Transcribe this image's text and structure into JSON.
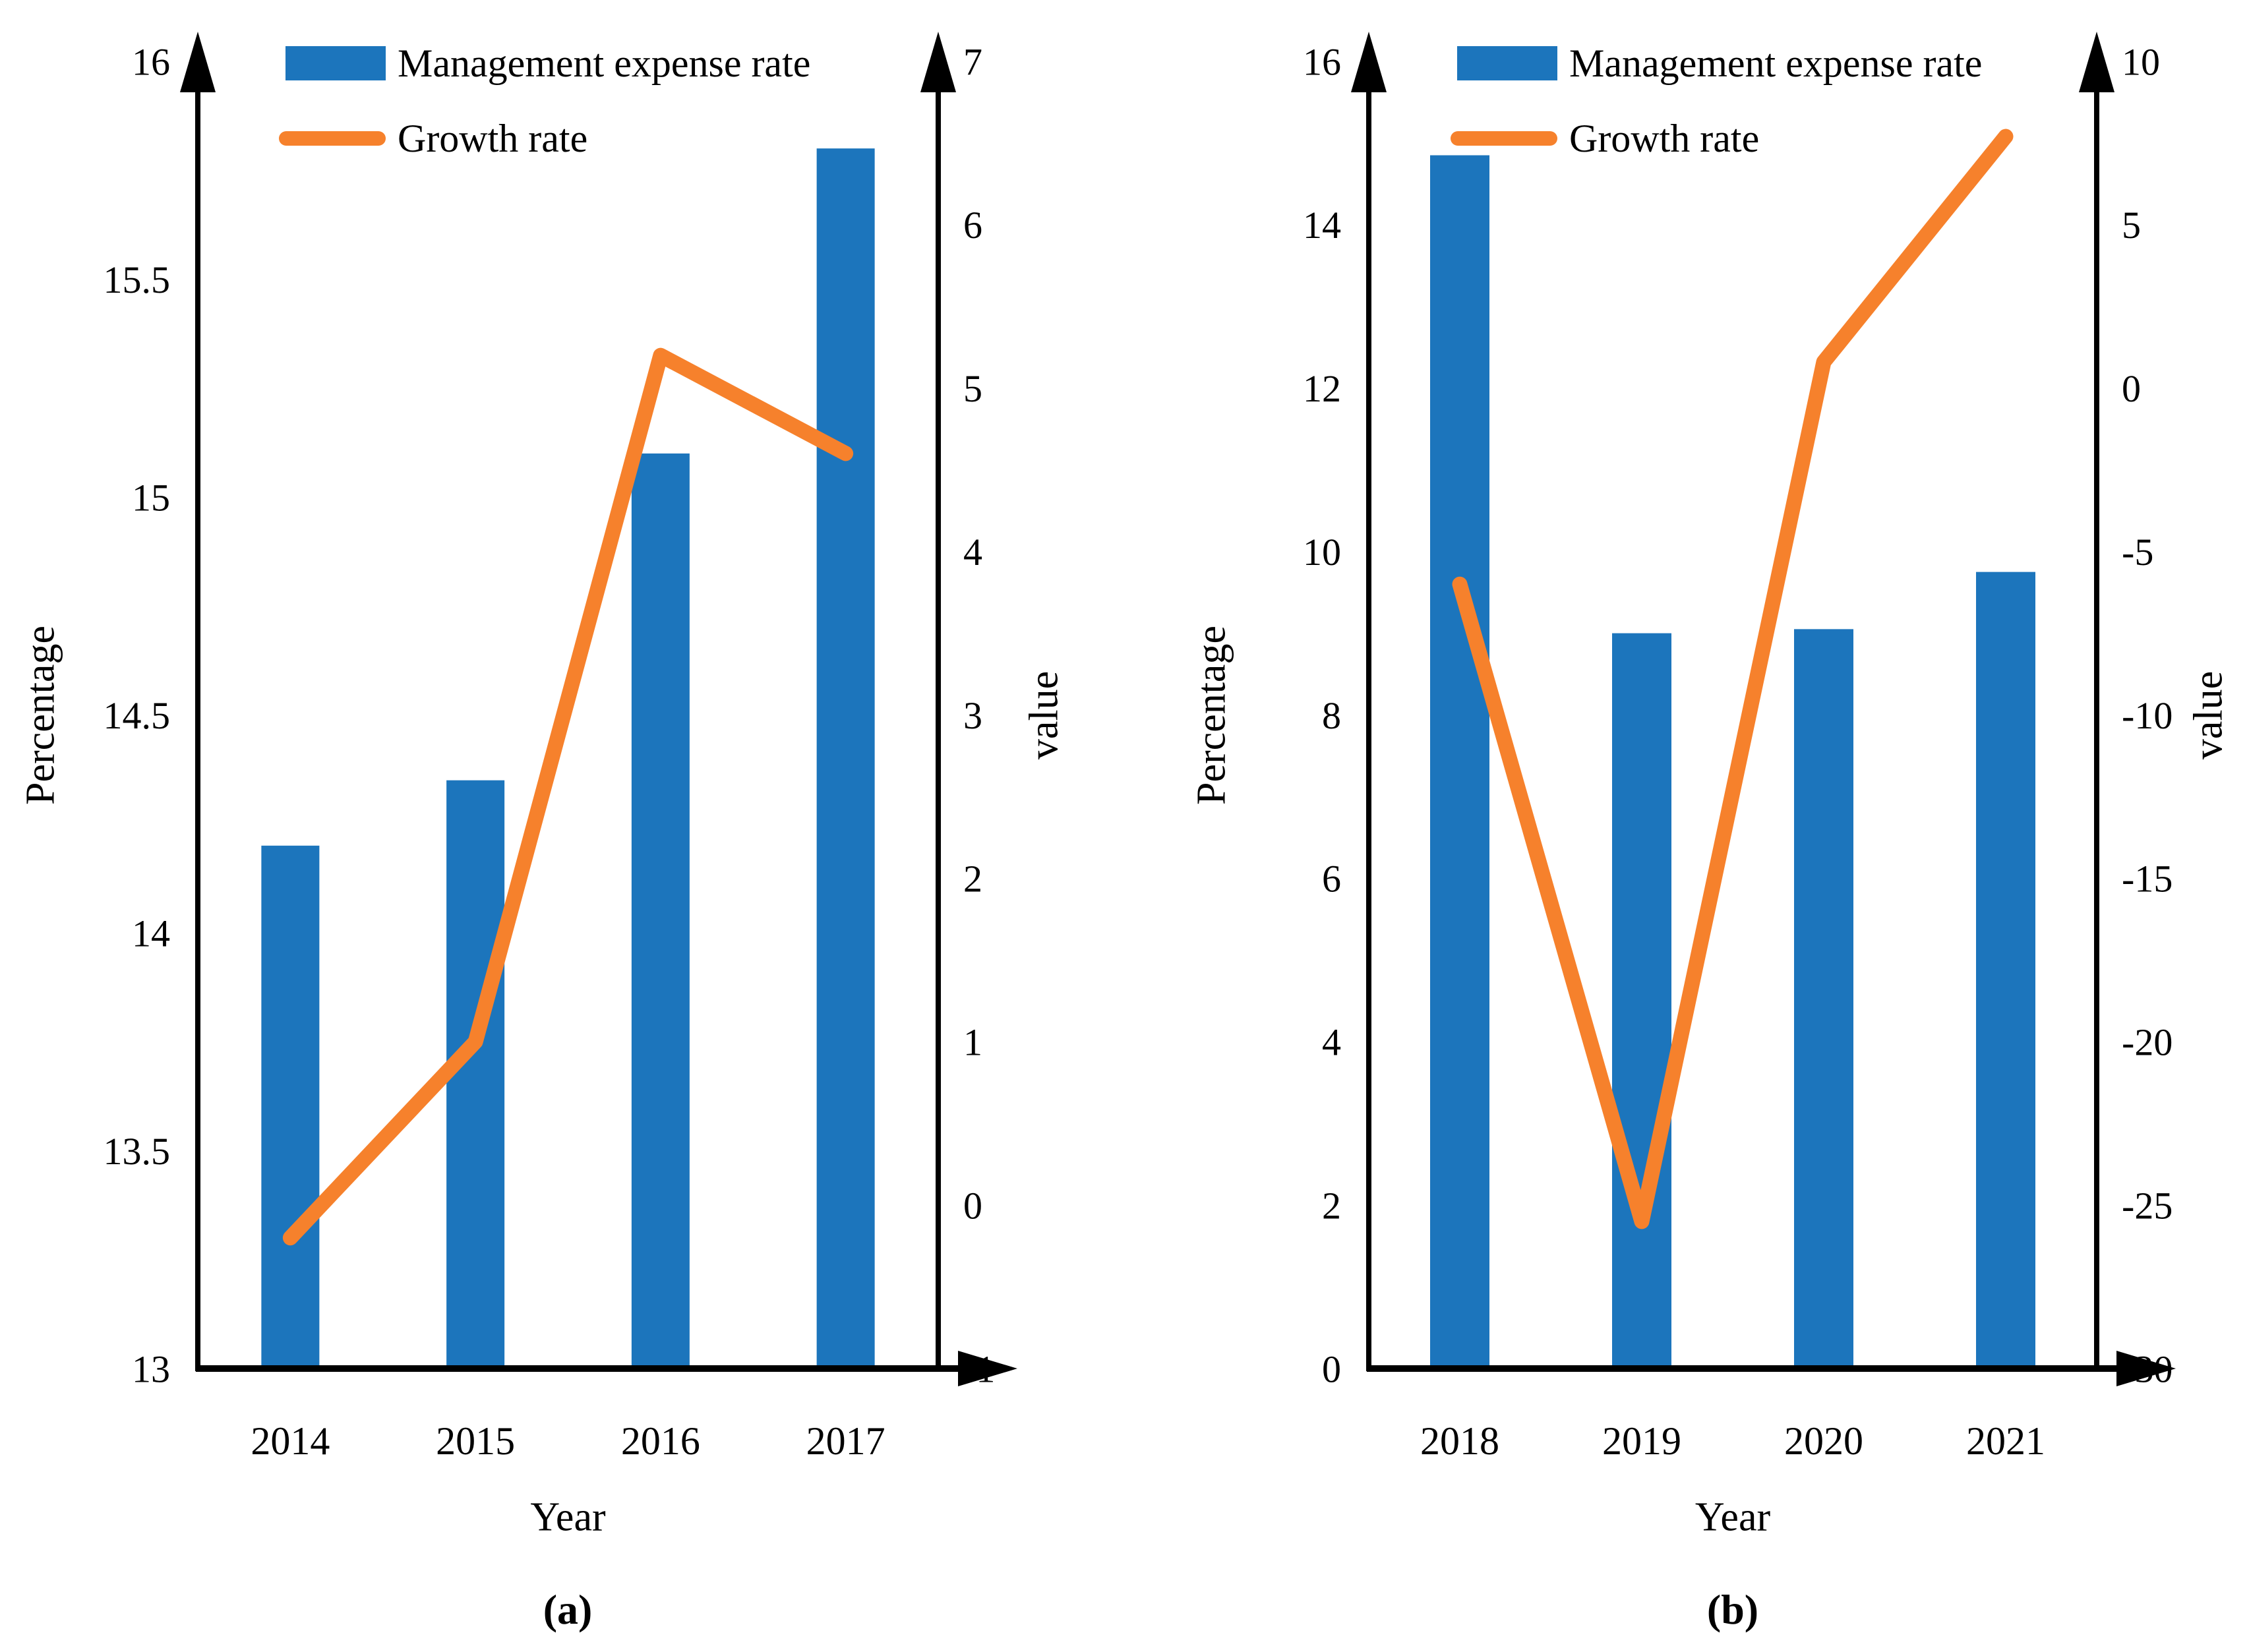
{
  "figure": {
    "colors": {
      "bar": "#1C75BC",
      "line": "#F6812C",
      "axis": "#000000",
      "text": "#000000",
      "background": "#FFFFFF"
    },
    "legend": {
      "bar_label": "Management expense rate",
      "line_label": "Growth rate"
    }
  },
  "chart_data": [
    {
      "id": "a",
      "type": "bar",
      "subtype": "bar+line-dual-axis",
      "caption": "(a)",
      "xlabel": "Year",
      "categories": [
        "2014",
        "2015",
        "2016",
        "2017"
      ],
      "series": [
        {
          "name": "Management expense rate",
          "type": "bar",
          "axis": "left",
          "values": [
            14.2,
            14.35,
            15.1,
            15.8
          ]
        },
        {
          "name": "Growth rate",
          "type": "line",
          "axis": "right",
          "values": [
            -0.2,
            1.0,
            5.2,
            4.6
          ]
        }
      ],
      "left_axis": {
        "title": "Percentage",
        "min": 13,
        "max": 16,
        "ticks": [
          "16",
          "15.5",
          "15",
          "14.5",
          "14",
          "13.5",
          "13"
        ]
      },
      "right_axis": {
        "title": "value",
        "min": -1,
        "max": 7,
        "ticks": [
          "7",
          "6",
          "5",
          "4",
          "3",
          "2",
          "1",
          "0",
          "-1"
        ]
      },
      "grid": false,
      "legend_position": "top-left-inside"
    },
    {
      "id": "b",
      "type": "bar",
      "subtype": "bar+line-dual-axis",
      "caption": "(b)",
      "xlabel": "Year",
      "categories": [
        "2018",
        "2019",
        "2020",
        "2021"
      ],
      "series": [
        {
          "name": "Management expense rate",
          "type": "bar",
          "axis": "left",
          "values": [
            14.85,
            9.0,
            9.05,
            9.75
          ]
        },
        {
          "name": "Growth rate",
          "type": "line",
          "axis": "right",
          "values": [
            -6.0,
            -25.5,
            0.8,
            7.7
          ]
        }
      ],
      "left_axis": {
        "title": "Percentage",
        "min": 0,
        "max": 16,
        "ticks": [
          "16",
          "14",
          "12",
          "10",
          "8",
          "6",
          "4",
          "2",
          "0"
        ]
      },
      "right_axis": {
        "title": "value",
        "min": -30,
        "max": 10,
        "ticks": [
          "10",
          "5",
          "0",
          "-5",
          "-10",
          "-15",
          "-20",
          "-25",
          "-30"
        ]
      },
      "grid": false,
      "legend_position": "top-left-inside"
    }
  ]
}
